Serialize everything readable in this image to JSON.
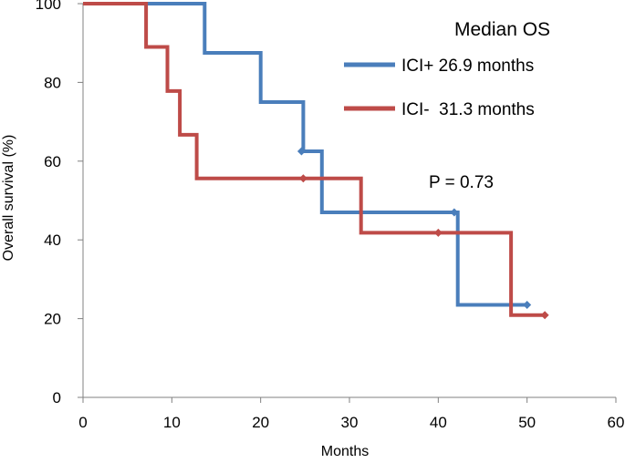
{
  "chart_data": {
    "type": "line",
    "subtype": "kaplan-meier step",
    "title": "",
    "xlabel": "Months",
    "ylabel": "Overall survival (%)",
    "xlim": [
      0,
      60
    ],
    "ylim": [
      0,
      100
    ],
    "xticks": [
      "0",
      "10",
      "20",
      "30",
      "40",
      "50",
      "60"
    ],
    "yticks": [
      "0",
      "20",
      "40",
      "60",
      "80",
      "100"
    ],
    "grid": false,
    "legend": {
      "title": "Median OS",
      "position": "top-right",
      "entries": [
        "ICI+ 26.9 months",
        "ICI-  31.3 months"
      ]
    },
    "annotations": [
      {
        "text": "P = 0.73",
        "x": 40,
        "y": 60
      }
    ],
    "series": [
      {
        "name": "ICI+",
        "color": "#4a7ebb",
        "points": [
          [
            0,
            100
          ],
          [
            13.7,
            100
          ],
          [
            13.7,
            87.5
          ],
          [
            20,
            87.5
          ],
          [
            20,
            75
          ],
          [
            24.8,
            75
          ],
          [
            24.8,
            62.5
          ],
          [
            26.9,
            62.5
          ],
          [
            26.9,
            47
          ],
          [
            42.2,
            47
          ],
          [
            42.2,
            23.5
          ],
          [
            50,
            23.5
          ]
        ],
        "censored": [
          [
            24.6,
            62.5
          ],
          [
            41.8,
            47
          ],
          [
            50,
            23.5
          ]
        ]
      },
      {
        "name": "ICI-",
        "color": "#be4b48",
        "points": [
          [
            0,
            100
          ],
          [
            7.1,
            100
          ],
          [
            7.1,
            89
          ],
          [
            9.5,
            89
          ],
          [
            9.5,
            77.8
          ],
          [
            10.9,
            77.8
          ],
          [
            10.9,
            66.7
          ],
          [
            12.8,
            66.7
          ],
          [
            12.8,
            55.6
          ],
          [
            31.3,
            55.6
          ],
          [
            31.3,
            41.8
          ],
          [
            48.2,
            41.8
          ],
          [
            48.2,
            20.9
          ],
          [
            52,
            20.9
          ]
        ],
        "censored": [
          [
            24.8,
            55.6
          ],
          [
            40,
            41.8
          ],
          [
            52,
            20.9
          ]
        ]
      }
    ]
  }
}
